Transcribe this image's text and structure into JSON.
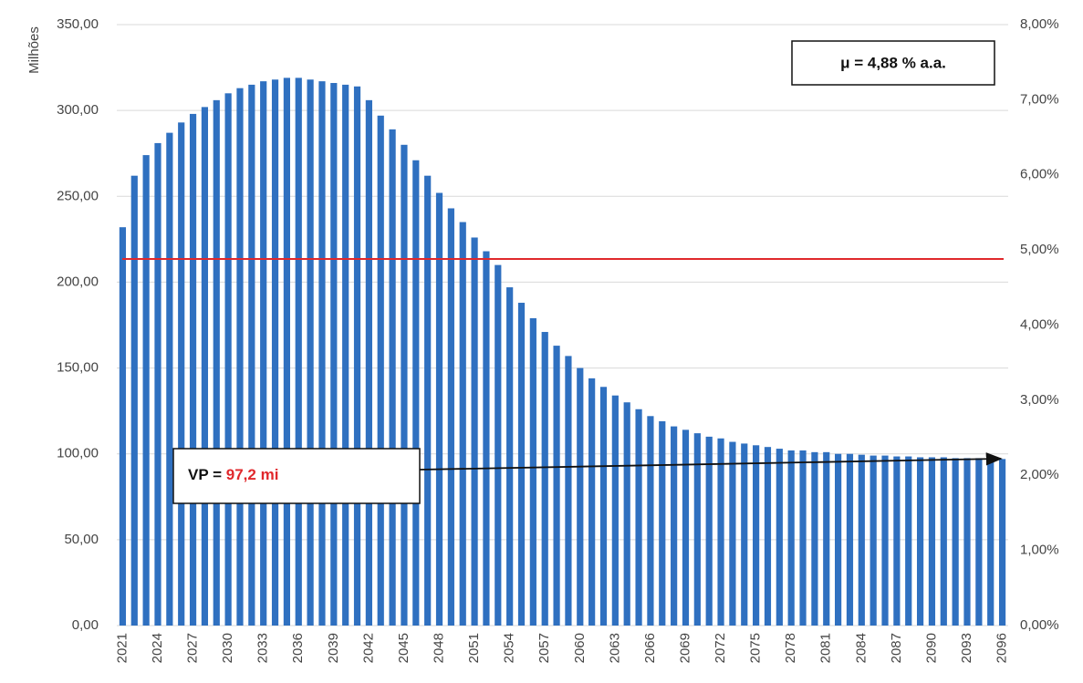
{
  "chart_data": {
    "type": "bar",
    "y_axis_title": "Milhões",
    "categories": [
      "2021",
      null,
      null,
      "2024",
      null,
      null,
      "2027",
      null,
      null,
      "2030",
      null,
      null,
      "2033",
      null,
      null,
      "2036",
      null,
      null,
      "2039",
      null,
      null,
      "2042",
      null,
      null,
      "2045",
      null,
      null,
      "2048",
      null,
      null,
      "2051",
      null,
      null,
      "2054",
      null,
      null,
      "2057",
      null,
      null,
      "2060",
      null,
      null,
      "2063",
      null,
      null,
      "2066",
      null,
      null,
      "2069",
      null,
      null,
      "2072",
      null,
      null,
      "2075",
      null,
      null,
      "2078",
      null,
      null,
      "2081",
      null,
      null,
      "2084",
      null,
      null,
      "2087",
      null,
      null,
      "2090",
      null,
      null,
      "2093",
      null,
      null,
      "2096"
    ],
    "values": [
      232,
      262,
      274,
      281,
      287,
      293,
      298,
      302,
      306,
      310,
      313,
      315,
      317,
      318,
      319,
      319,
      318,
      317,
      316,
      315,
      314,
      306,
      297,
      289,
      280,
      271,
      262,
      252,
      243,
      235,
      226,
      218,
      210,
      197,
      188,
      179,
      171,
      163,
      157,
      150,
      144,
      139,
      134,
      130,
      126,
      122,
      119,
      116,
      114,
      112,
      110,
      109,
      107,
      106,
      105,
      104,
      103,
      102,
      102,
      101,
      101,
      100,
      100,
      99.5,
      99,
      99,
      98.5,
      98.5,
      98,
      98,
      98,
      97.5,
      97.5,
      97.5,
      97.2,
      97
    ],
    "color": "#2f70c0",
    "ylim": [
      0,
      350
    ],
    "yticks": [
      {
        "value": 0,
        "label": "0,00"
      },
      {
        "value": 50,
        "label": "50,00"
      },
      {
        "value": 100,
        "label": "100,00"
      },
      {
        "value": 150,
        "label": "150,00"
      },
      {
        "value": 200,
        "label": "200,00"
      },
      {
        "value": 250,
        "label": "250,00"
      },
      {
        "value": 300,
        "label": "300,00"
      },
      {
        "value": 350,
        "label": "350,00"
      }
    ],
    "y2lim": [
      0,
      8
    ],
    "y2ticks": [
      {
        "value": 0,
        "label": "0,00%"
      },
      {
        "value": 1,
        "label": "1,00%"
      },
      {
        "value": 2,
        "label": "2,00%"
      },
      {
        "value": 3,
        "label": "3,00%"
      },
      {
        "value": 4,
        "label": "4,00%"
      },
      {
        "value": 5,
        "label": "5,00%"
      },
      {
        "value": 6,
        "label": "6,00%"
      },
      {
        "value": 7,
        "label": "7,00%"
      },
      {
        "value": 8,
        "label": "8,00%"
      }
    ],
    "reference_line": {
      "value": 4.88,
      "axis": "y2",
      "color": "#e0282c"
    },
    "grid": true,
    "annotations": [
      {
        "text": "μ = 4,88 % a.a."
      },
      {
        "text": "VP =",
        "highlight": "97,2 mi"
      }
    ]
  }
}
